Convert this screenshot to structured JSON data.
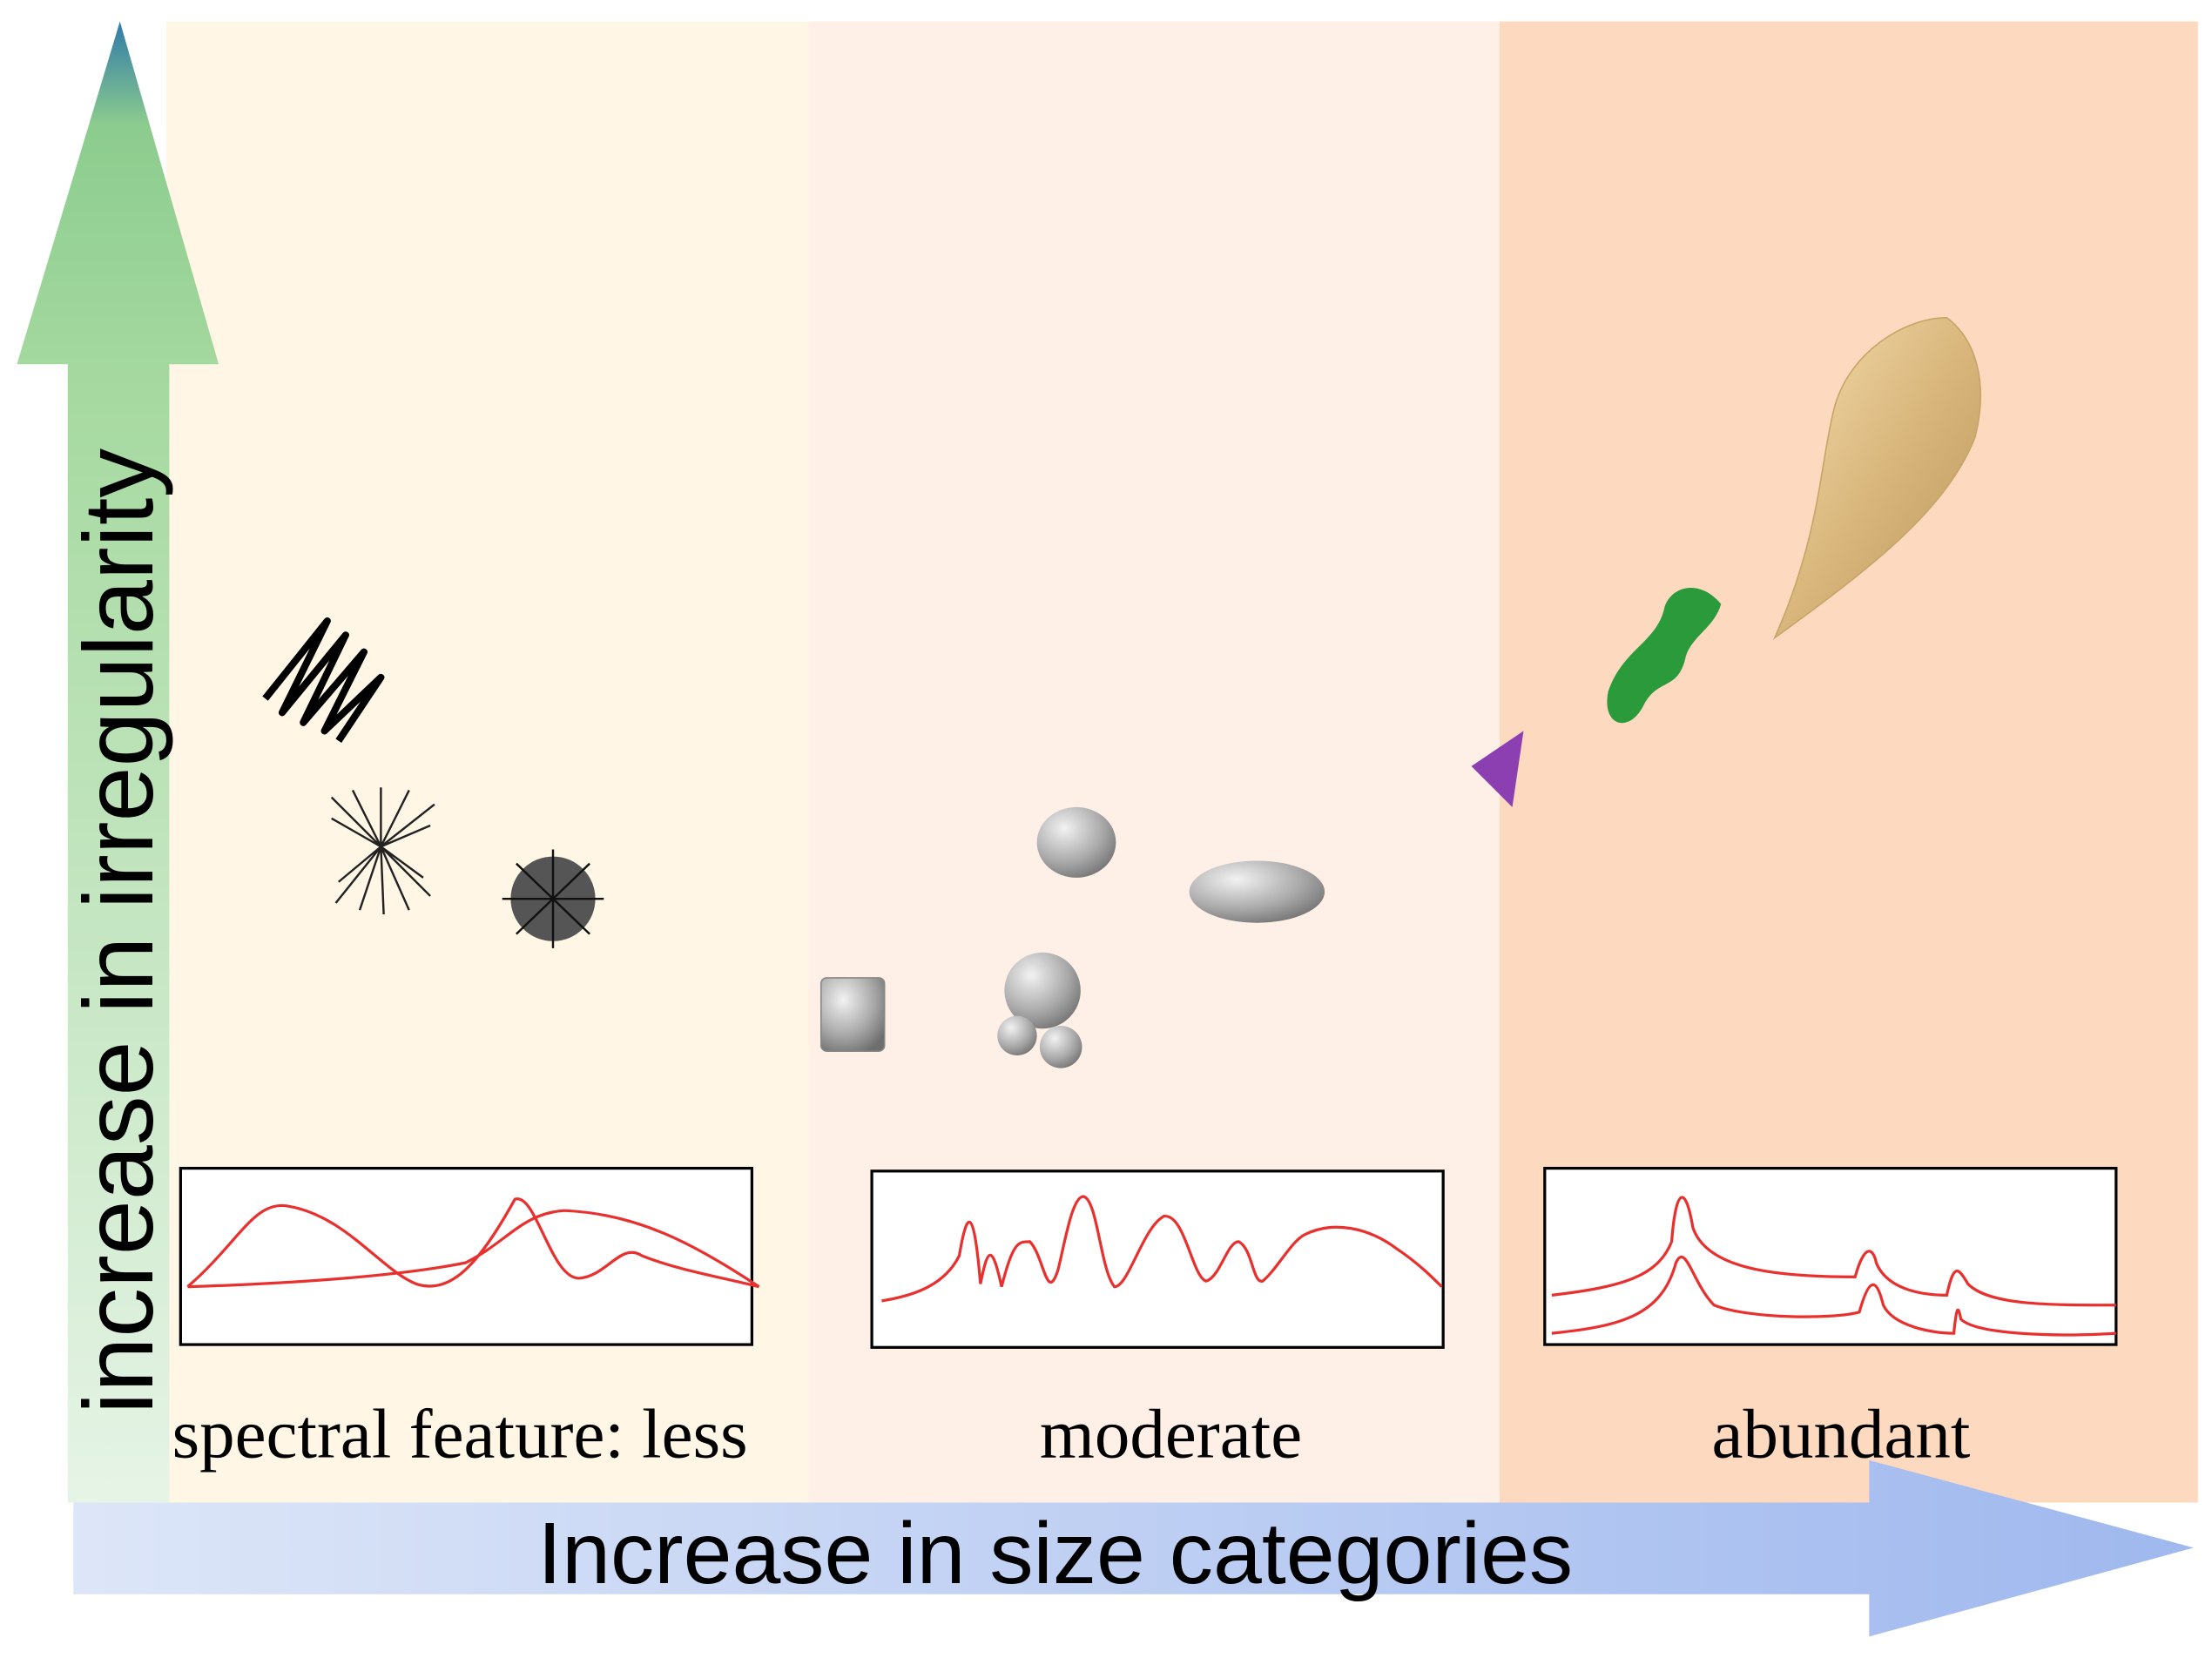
{
  "y_axis": {
    "label": "increase in irregularity"
  },
  "x_axis": {
    "label": "Increase in size categories"
  },
  "panels": [
    {
      "label": "spectral feature: less"
    },
    {
      "label": "moderate"
    },
    {
      "label": "abundant"
    }
  ]
}
